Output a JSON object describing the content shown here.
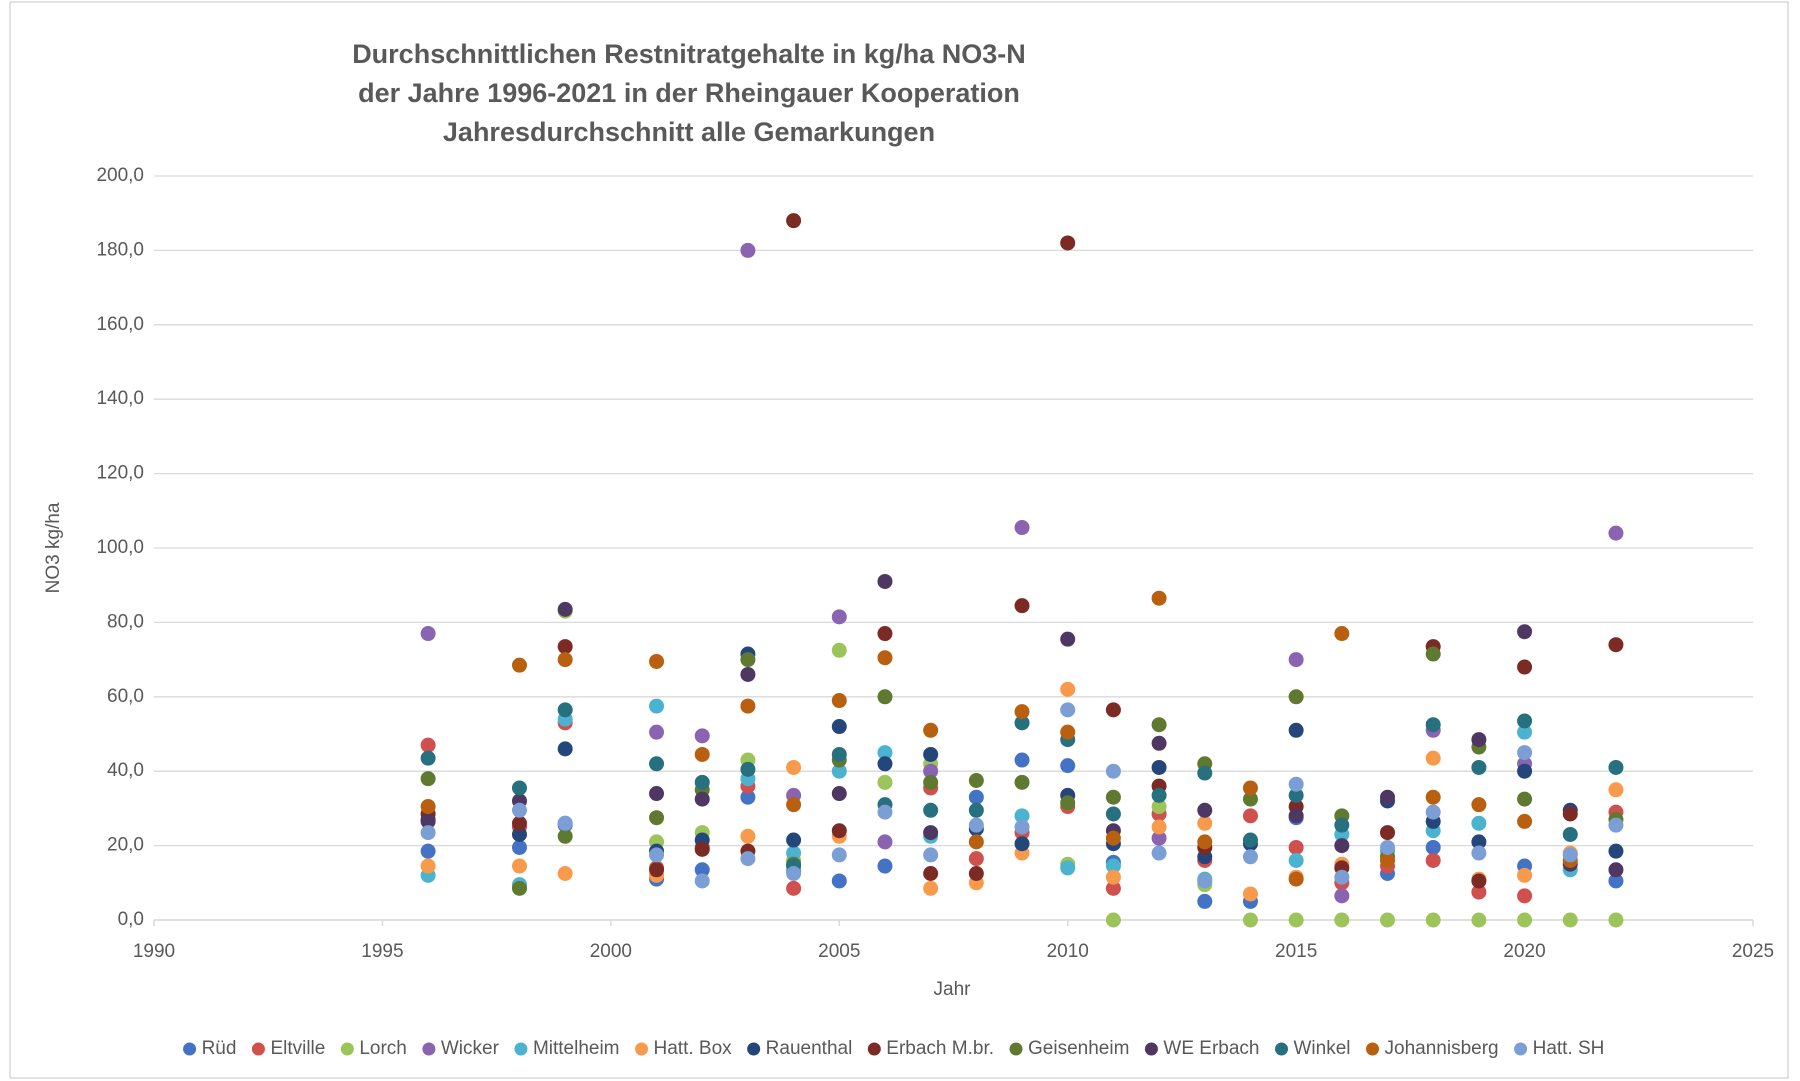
{
  "chart_data": {
    "type": "scatter",
    "title": [
      "Durchschnittlichen Restnitratgehalte in kg/ha NO3-N",
      "der Jahre 1996-2021 in der Rheingauer Kooperation",
      "Jahresdurchschnitt alle Gemarkungen"
    ],
    "x_label": "Jahr",
    "y_label": "NO3 kg/ha",
    "x": [
      1996,
      1998,
      1999,
      2001,
      2002,
      2003,
      2004,
      2005,
      2006,
      2007,
      2008,
      2009,
      2010,
      2011,
      2012,
      2013,
      2014,
      2015,
      2016,
      2017,
      2018,
      2019,
      2020,
      2021,
      2022
    ],
    "xlim": [
      1990,
      2025
    ],
    "xticks": [
      1990,
      1995,
      2000,
      2005,
      2010,
      2015,
      2020,
      2025
    ],
    "ylim": [
      0,
      200
    ],
    "yticks": [
      {
        "value": 0,
        "label": "0,0"
      },
      {
        "value": 20,
        "label": "20,0"
      },
      {
        "value": 40,
        "label": "40,0"
      },
      {
        "value": 60,
        "label": "60,0"
      },
      {
        "value": 80,
        "label": "80,0"
      },
      {
        "value": 100,
        "label": "100,0"
      },
      {
        "value": 120,
        "label": "120,0"
      },
      {
        "value": 140,
        "label": "140,0"
      },
      {
        "value": 160,
        "label": "160,0"
      },
      {
        "value": 180,
        "label": "180,0"
      },
      {
        "value": 200,
        "label": "200,0"
      }
    ],
    "grid": true,
    "legend": "bottom",
    "series": [
      {
        "name": "Rüd",
        "color": "#4472c4",
        "values": [
          18.5,
          19.5,
          25.5,
          11,
          13.5,
          33,
          13,
          10.5,
          14.5,
          null,
          33,
          43,
          41.5,
          15.5,
          null,
          5,
          5,
          27.5,
          null,
          12.5,
          19.5,
          null,
          14.5,
          null,
          10.5
        ]
      },
      {
        "name": "Eltville",
        "color": "#d0504e",
        "values": [
          47,
          25,
          53,
          14,
          19.5,
          36,
          8.5,
          null,
          null,
          35.5,
          16.5,
          23.5,
          30.5,
          8.5,
          28.5,
          16,
          28,
          19.5,
          10,
          14.5,
          16,
          7.5,
          6.5,
          null,
          29
        ]
      },
      {
        "name": "Lorch",
        "color": "#9bc45a",
        "values": [
          null,
          9,
          83,
          21,
          23.5,
          43,
          16,
          72.5,
          37,
          42,
          null,
          null,
          15,
          0,
          30.5,
          9.5,
          0,
          0,
          0,
          0,
          0,
          0,
          0,
          0,
          0
        ]
      },
      {
        "name": "Wicker",
        "color": "#8a63b1",
        "values": [
          77,
          null,
          26,
          50.5,
          49.5,
          180,
          33.5,
          81.5,
          21,
          40,
          null,
          105.5,
          null,
          null,
          22,
          null,
          null,
          70,
          6.5,
          null,
          51,
          null,
          42,
          null,
          104
        ]
      },
      {
        "name": "Mittelheim",
        "color": "#4bb3cf",
        "values": [
          12,
          9.5,
          54,
          57.5,
          null,
          38,
          18,
          40,
          45,
          22.5,
          null,
          28,
          14,
          14.5,
          null,
          11,
          null,
          16,
          23,
          18.5,
          24,
          26,
          50.5,
          13.5,
          null
        ]
      },
      {
        "name": "Hatt. Box",
        "color": "#f79a4c",
        "values": [
          14.5,
          14.5,
          12.5,
          12,
          null,
          22.5,
          41,
          22.5,
          null,
          8.5,
          10,
          18,
          62,
          11.5,
          25,
          26,
          7,
          11.5,
          15,
          null,
          43.5,
          11,
          12,
          18,
          35
        ]
      },
      {
        "name": "Rauenthal",
        "color": "#25467a",
        "values": [
          27,
          23,
          46,
          18.5,
          21.5,
          71.5,
          21.5,
          52,
          42,
          44.5,
          24.5,
          20.5,
          33.5,
          20.5,
          41,
          17,
          20.5,
          51,
          null,
          32,
          26.5,
          21,
          40,
          29.5,
          18.5
        ]
      },
      {
        "name": "Erbach M.br.",
        "color": "#7c2a24",
        "values": [
          28.5,
          26,
          73.5,
          13.5,
          19,
          18.5,
          188,
          24,
          77,
          12.5,
          12.5,
          84.5,
          182,
          56.5,
          36,
          19.5,
          null,
          30.5,
          14,
          23.5,
          73.5,
          10.5,
          68,
          28.5,
          74
        ]
      },
      {
        "name": "Geisenheim",
        "color": "#5f7a30",
        "values": [
          38,
          8.5,
          22.5,
          27.5,
          35,
          70,
          15,
          43,
          60,
          37,
          37.5,
          37,
          31.5,
          33,
          52.5,
          42,
          32.5,
          60,
          28,
          17,
          71.5,
          46.5,
          32.5,
          null,
          27
        ]
      },
      {
        "name": "WE Erbach",
        "color": "#4e3863",
        "values": [
          26.5,
          32,
          83.5,
          34,
          32.5,
          66,
          null,
          34,
          91,
          23.5,
          null,
          null,
          75.5,
          24,
          47.5,
          29.5,
          null,
          28,
          20,
          33,
          null,
          48.5,
          77.5,
          15,
          13.5
        ]
      },
      {
        "name": "Winkel",
        "color": "#27707f",
        "values": [
          43.5,
          35.5,
          56.5,
          42,
          37,
          40.5,
          14.5,
          44.5,
          31,
          29.5,
          29.5,
          53,
          48.5,
          28.5,
          33.5,
          39.5,
          21.5,
          33.5,
          25.5,
          null,
          52.5,
          41,
          53.5,
          23,
          41
        ]
      },
      {
        "name": "Johannisberg",
        "color": "#b8600f",
        "values": [
          30.5,
          68.5,
          70,
          69.5,
          44.5,
          57.5,
          31,
          59,
          70.5,
          51,
          21,
          56,
          50.5,
          22,
          86.5,
          21,
          35.5,
          11,
          77,
          16,
          33,
          31,
          26.5,
          16,
          null
        ]
      },
      {
        "name": "Hatt. SH",
        "color": "#7b9fd4",
        "values": [
          23.5,
          29.5,
          26,
          17.5,
          10.5,
          16.5,
          12.5,
          17.5,
          29,
          17.5,
          25.5,
          25,
          56.5,
          40,
          18,
          10.5,
          17,
          36.5,
          11.5,
          19.5,
          29,
          18,
          45,
          17.5,
          25.5
        ]
      }
    ]
  }
}
